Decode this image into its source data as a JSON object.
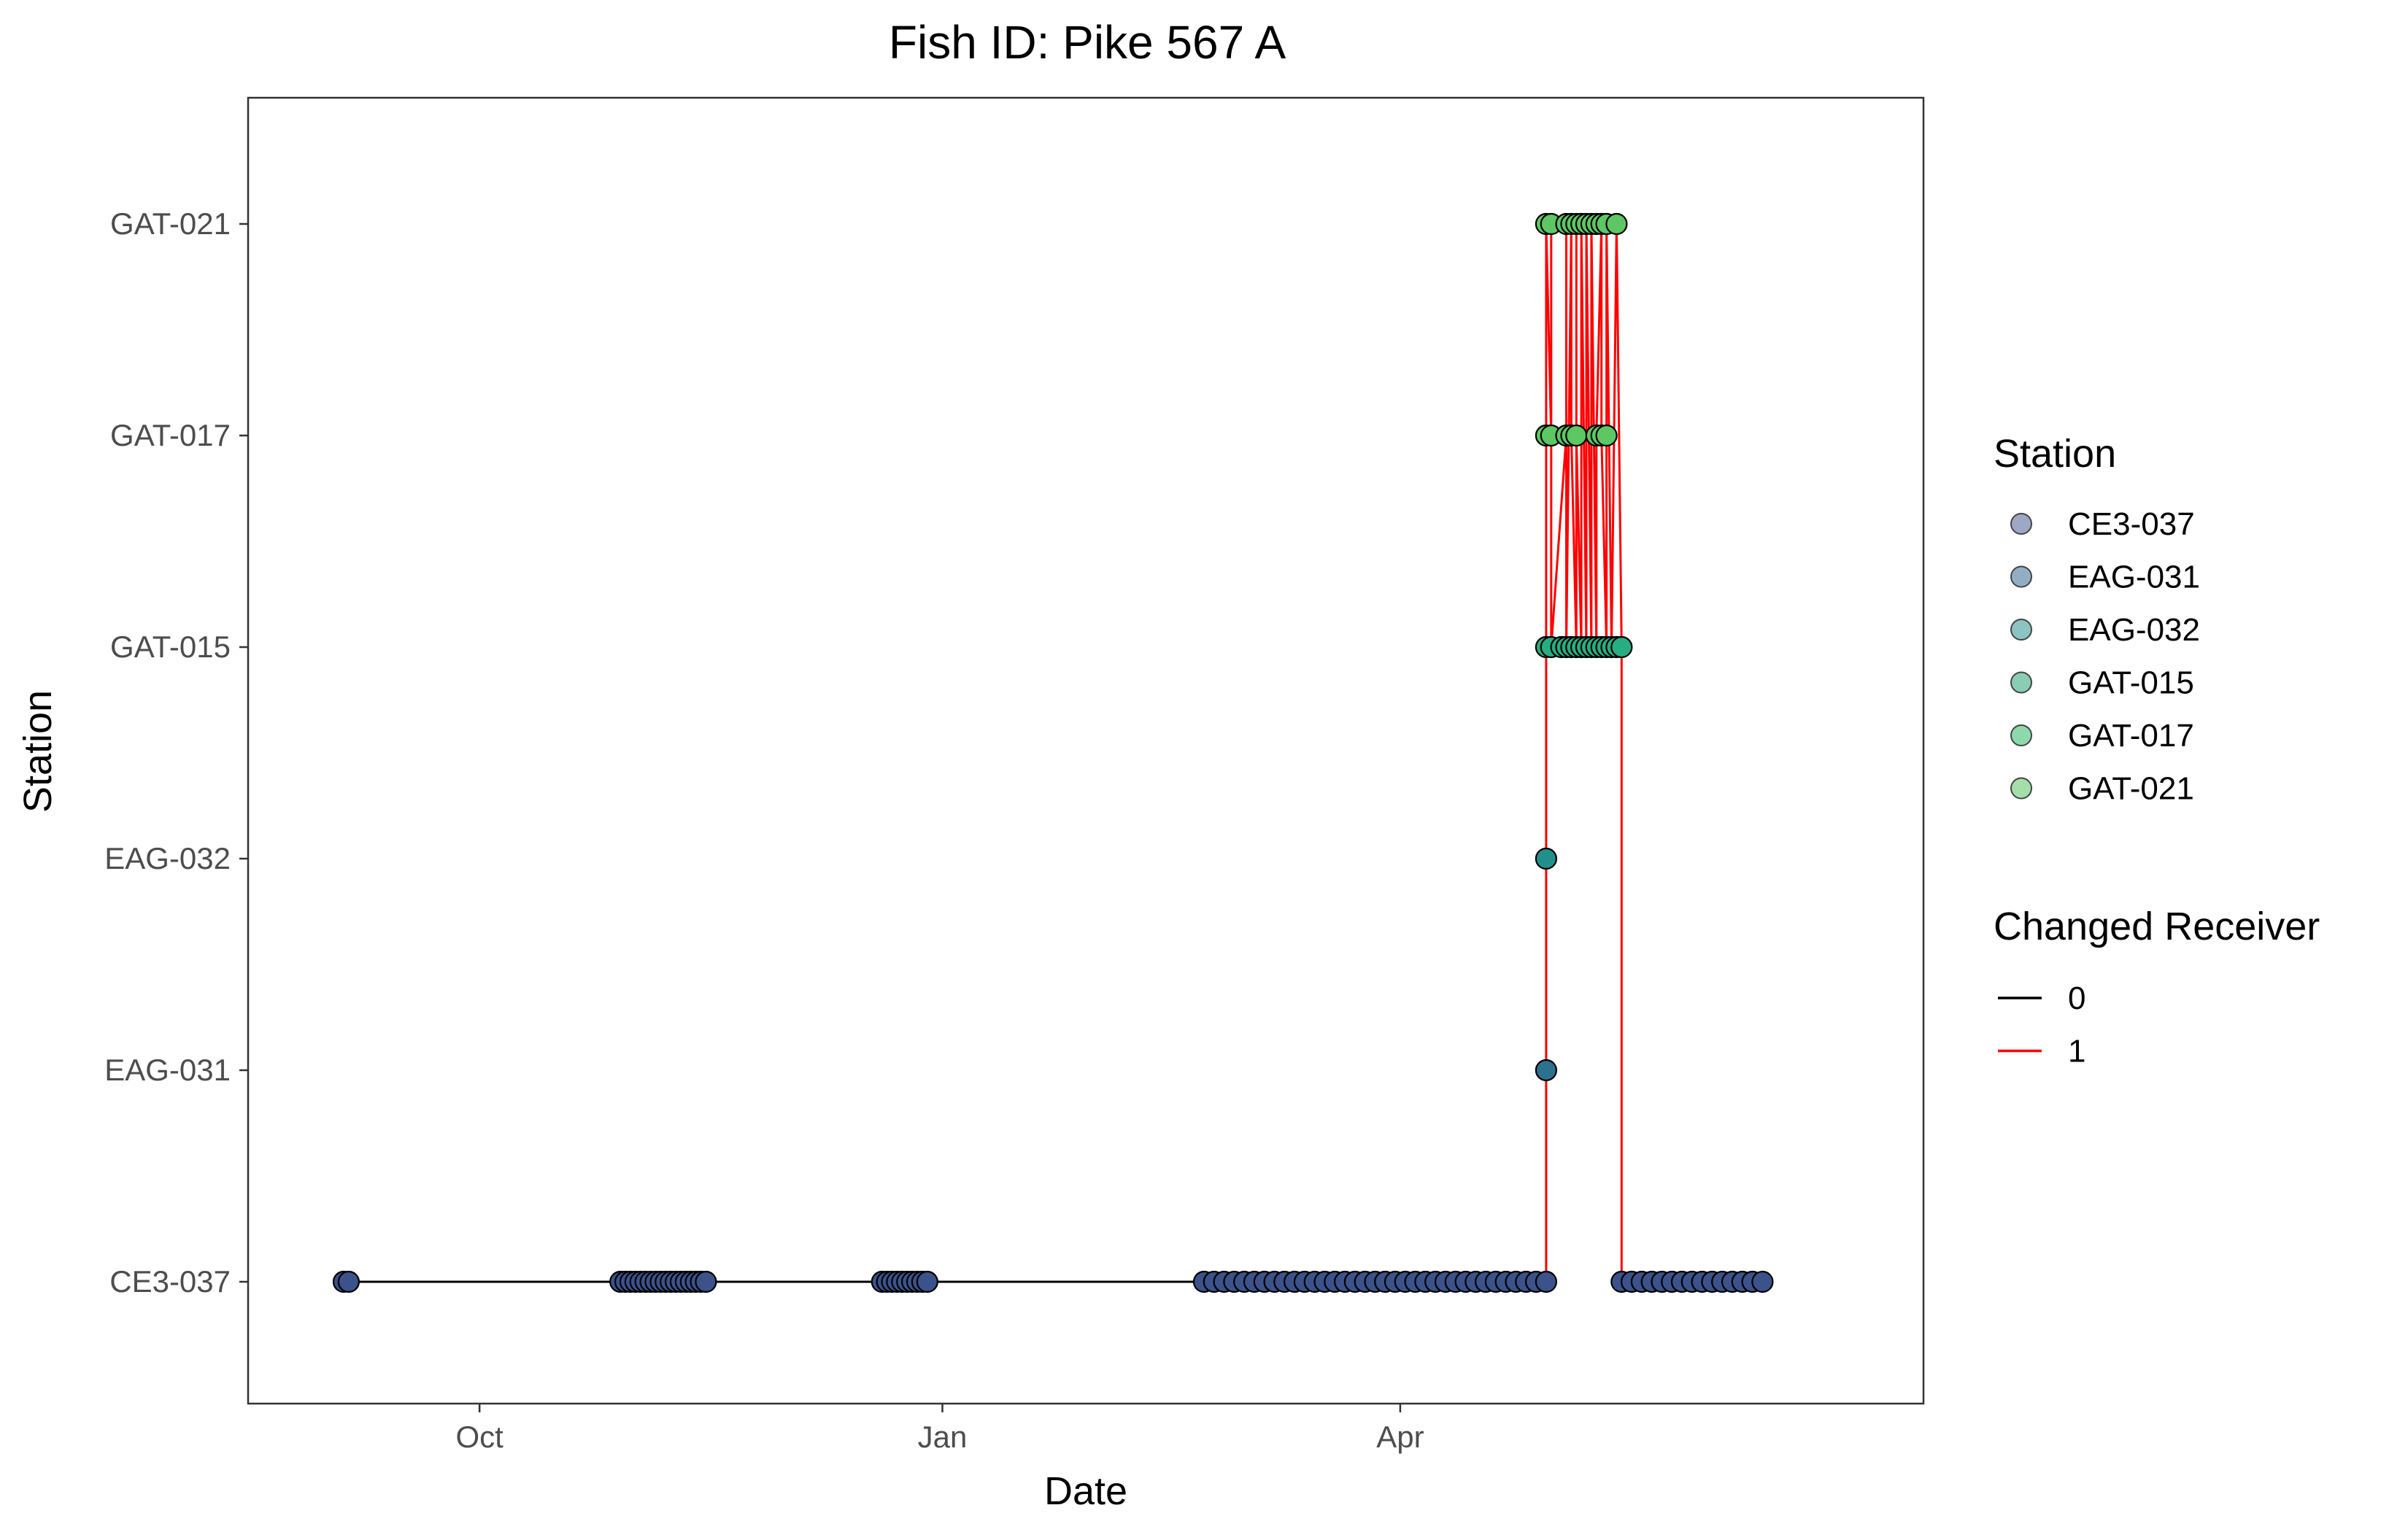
{
  "chart_data": {
    "type": "scatter",
    "title": "Fish ID: Pike 567 A",
    "xlabel": "Date",
    "ylabel": "Station",
    "x_axis": {
      "type": "date",
      "range": [
        "2023-08-16",
        "2024-07-14"
      ],
      "ticks": [
        {
          "date": "2023-10-01",
          "label": "Oct"
        },
        {
          "date": "2024-01-01",
          "label": "Jan"
        },
        {
          "date": "2024-04-01",
          "label": "Apr"
        }
      ]
    },
    "y_axis": {
      "type": "categorical",
      "categories": [
        "CE3-037",
        "EAG-031",
        "EAG-032",
        "GAT-015",
        "GAT-017",
        "GAT-021"
      ]
    },
    "grid": false,
    "station_colors": {
      "CE3-037": "#3b528b",
      "EAG-031": "#2c728e",
      "EAG-032": "#21908d",
      "GAT-015": "#27ad81",
      "GAT-017": "#5dc863",
      "GAT-021": "#5dc863"
    },
    "legend_colors": {
      "CE3-037": "#9ea8c4",
      "EAG-031": "#93aec3",
      "EAG-032": "#8cc4c2",
      "GAT-015": "#88cdb4",
      "GAT-017": "#8ed9ac",
      "GAT-021": "#a4deaa"
    },
    "change_colors": {
      "0": "#000000",
      "1": "#ff0000"
    },
    "legend": {
      "placement": "right",
      "station_title": "Station",
      "station_items": [
        "CE3-037",
        "EAG-031",
        "EAG-032",
        "GAT-015",
        "GAT-017",
        "GAT-021"
      ],
      "change_title": "Changed Receiver",
      "change_items": [
        "0",
        "1"
      ]
    },
    "series": [
      {
        "station": "CE3-037",
        "dates": [
          "2023-09-04",
          "2023-09-05",
          "2023-10-29",
          "2023-10-30",
          "2023-10-31",
          "2023-11-01",
          "2023-11-02",
          "2023-11-03",
          "2023-11-04",
          "2023-11-05",
          "2023-11-06",
          "2023-11-07",
          "2023-11-08",
          "2023-11-09",
          "2023-11-10",
          "2023-11-11",
          "2023-11-12",
          "2023-11-13",
          "2023-11-14",
          "2023-11-15",
          "2023-12-20",
          "2023-12-21",
          "2023-12-22",
          "2023-12-23",
          "2023-12-24",
          "2023-12-25",
          "2023-12-26",
          "2023-12-27",
          "2023-12-28",
          "2023-12-29",
          "2024-02-22",
          "2024-02-24",
          "2024-02-26",
          "2024-02-28",
          "2024-03-01",
          "2024-03-03",
          "2024-03-05",
          "2024-03-07",
          "2024-03-09",
          "2024-03-11",
          "2024-03-13",
          "2024-03-15",
          "2024-03-17",
          "2024-03-19",
          "2024-03-21",
          "2024-03-23",
          "2024-03-25",
          "2024-03-27",
          "2024-03-29",
          "2024-03-31",
          "2024-04-02",
          "2024-04-04",
          "2024-04-06",
          "2024-04-08",
          "2024-04-10",
          "2024-04-12",
          "2024-04-14",
          "2024-04-16",
          "2024-04-18",
          "2024-04-20",
          "2024-04-22",
          "2024-04-24",
          "2024-04-26",
          "2024-04-28",
          "2024-04-30",
          "2024-05-15",
          "2024-05-17",
          "2024-05-19",
          "2024-05-21",
          "2024-05-23",
          "2024-05-25",
          "2024-05-27",
          "2024-05-29",
          "2024-05-31",
          "2024-06-02",
          "2024-06-04",
          "2024-06-06",
          "2024-06-08",
          "2024-06-10",
          "2024-06-12"
        ]
      },
      {
        "station": "EAG-031",
        "dates": [
          "2024-04-30"
        ]
      },
      {
        "station": "EAG-032",
        "dates": [
          "2024-04-30"
        ]
      },
      {
        "station": "GAT-015",
        "dates": [
          "2024-04-30",
          "2024-05-01",
          "2024-05-03",
          "2024-05-04",
          "2024-05-05",
          "2024-05-06",
          "2024-05-07",
          "2024-05-08",
          "2024-05-09",
          "2024-05-10",
          "2024-05-11",
          "2024-05-12",
          "2024-05-13",
          "2024-05-14",
          "2024-05-15"
        ]
      },
      {
        "station": "GAT-017",
        "dates": [
          "2024-04-30",
          "2024-05-01",
          "2024-05-04",
          "2024-05-05",
          "2024-05-06",
          "2024-05-10",
          "2024-05-11",
          "2024-05-12"
        ]
      },
      {
        "station": "GAT-021",
        "dates": [
          "2024-04-30",
          "2024-05-01",
          "2024-05-04",
          "2024-05-05",
          "2024-05-06",
          "2024-05-07",
          "2024-05-08",
          "2024-05-09",
          "2024-05-10",
          "2024-05-11",
          "2024-05-12",
          "2024-05-14"
        ]
      }
    ],
    "changed_receiver_path": [
      [
        "2024-04-30",
        "CE3-037"
      ],
      [
        "2024-04-30",
        "EAG-031"
      ],
      [
        "2024-04-30",
        "EAG-032"
      ],
      [
        "2024-04-30",
        "GAT-015"
      ],
      [
        "2024-04-30",
        "GAT-021"
      ],
      [
        "2024-05-01",
        "GAT-017"
      ],
      [
        "2024-05-01",
        "GAT-015"
      ],
      [
        "2024-05-01",
        "GAT-021"
      ],
      [
        "2024-05-01",
        "GAT-015"
      ],
      [
        "2024-05-04",
        "GAT-017"
      ],
      [
        "2024-05-04",
        "GAT-021"
      ],
      [
        "2024-05-04",
        "GAT-015"
      ],
      [
        "2024-05-05",
        "GAT-021"
      ],
      [
        "2024-05-05",
        "GAT-017"
      ],
      [
        "2024-05-06",
        "GAT-015"
      ],
      [
        "2024-05-06",
        "GAT-021"
      ],
      [
        "2024-05-06",
        "GAT-017"
      ],
      [
        "2024-05-07",
        "GAT-015"
      ],
      [
        "2024-05-07",
        "GAT-021"
      ],
      [
        "2024-05-08",
        "GAT-015"
      ],
      [
        "2024-05-08",
        "GAT-021"
      ],
      [
        "2024-05-09",
        "GAT-015"
      ],
      [
        "2024-05-09",
        "GAT-021"
      ],
      [
        "2024-05-10",
        "GAT-015"
      ],
      [
        "2024-05-10",
        "GAT-017"
      ],
      [
        "2024-05-11",
        "GAT-021"
      ],
      [
        "2024-05-11",
        "GAT-017"
      ],
      [
        "2024-05-12",
        "GAT-015"
      ],
      [
        "2024-05-12",
        "GAT-021"
      ],
      [
        "2024-05-13",
        "GAT-015"
      ],
      [
        "2024-05-14",
        "GAT-021"
      ],
      [
        "2024-05-15",
        "GAT-015"
      ],
      [
        "2024-05-15",
        "CE3-037"
      ]
    ],
    "unchanged_receiver_path": [
      [
        "2023-09-04",
        "CE3-037"
      ],
      [
        "2024-04-30",
        "CE3-037"
      ]
    ]
  }
}
